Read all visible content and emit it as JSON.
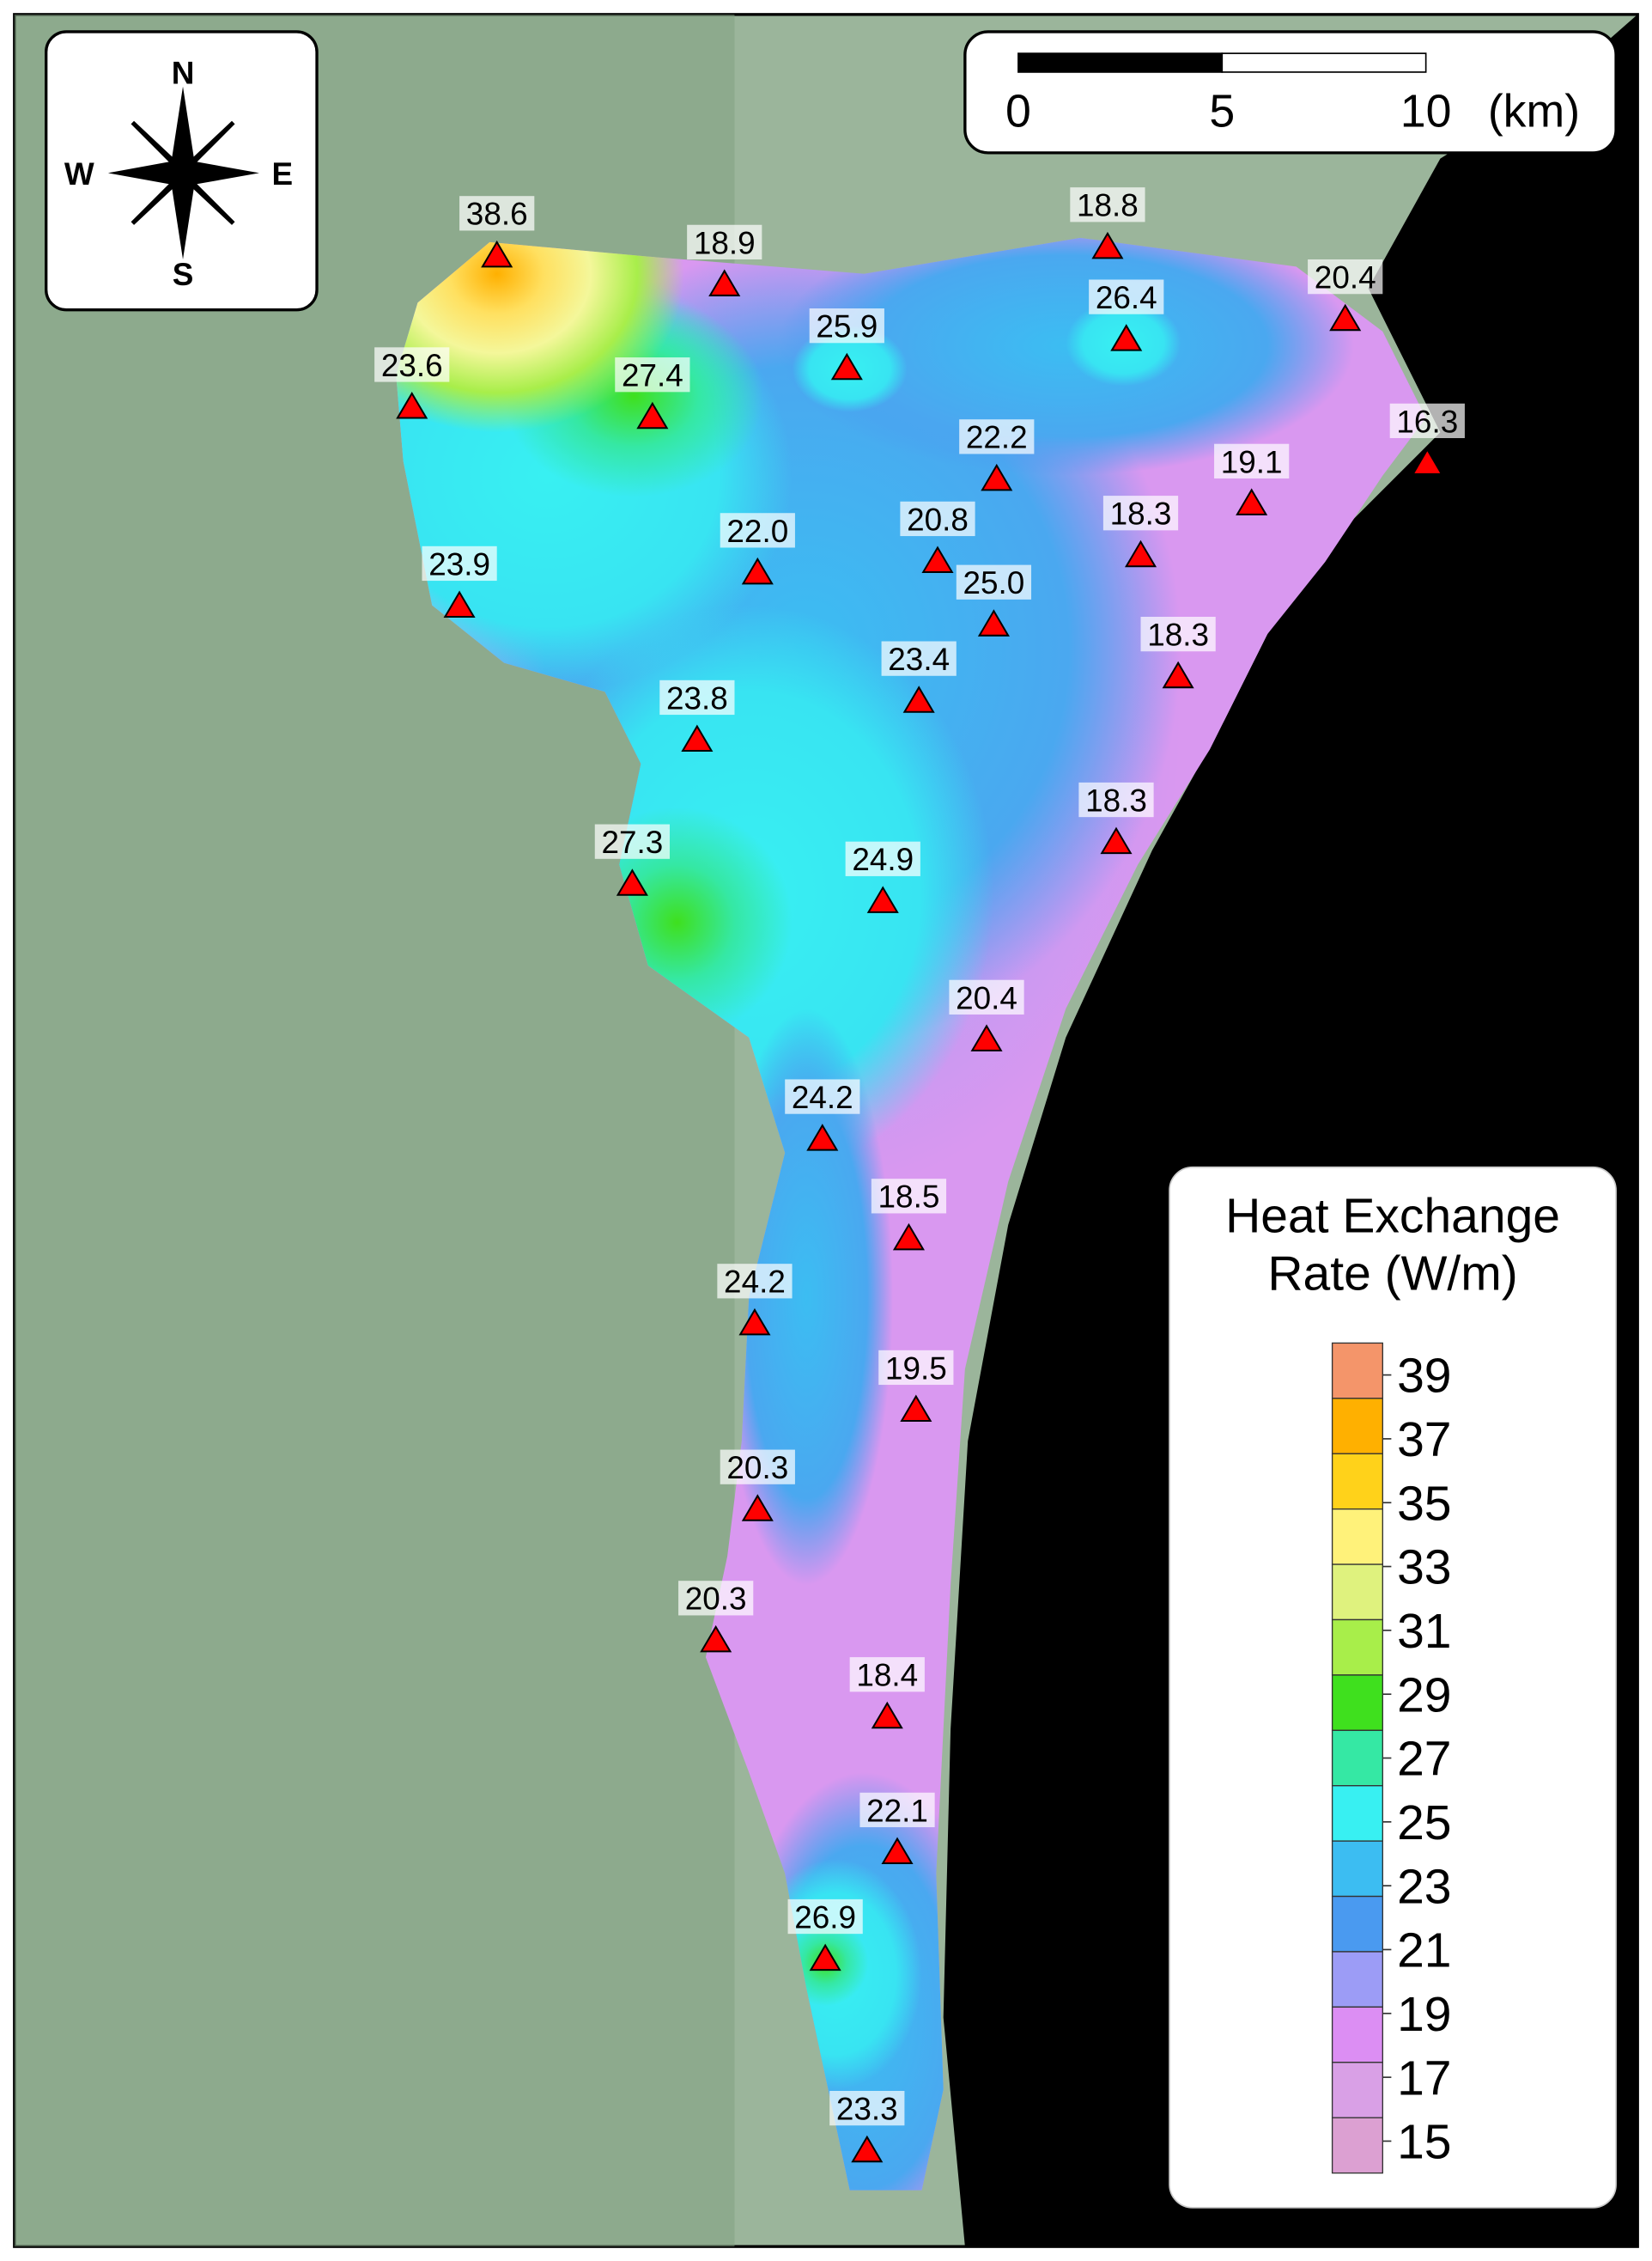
{
  "compass": {
    "north": "N",
    "south": "S",
    "east": "E",
    "west": "W"
  },
  "scale_bar": {
    "ticks": [
      0,
      5,
      10
    ],
    "unit": "(km)"
  },
  "legend": {
    "title_lines": [
      "Heat Exchange",
      "Rate (W/m)"
    ],
    "ticks": [
      39,
      37,
      35,
      33,
      31,
      29,
      27,
      25,
      23,
      21,
      19,
      17,
      15
    ],
    "colors": [
      "#f4956a",
      "#ffb000",
      "#ffd21a",
      "#fff27a",
      "#dff27e",
      "#a8ee4a",
      "#3fe01e",
      "#35e8a4",
      "#38f0f2",
      "#3cbdf2",
      "#4a9af0",
      "#9c9cf6",
      "#dc8ef3",
      "#d9a0e6",
      "#dca0d2"
    ]
  },
  "stations": [
    "38.6",
    "18.9",
    "18.8",
    "20.4",
    "25.9",
    "26.4",
    "23.6",
    "27.4",
    "16.3",
    "22.2",
    "19.1",
    "22.0",
    "20.8",
    "18.3",
    "23.9",
    "25.0",
    "18.3",
    "23.4",
    "23.8",
    "18.3",
    "27.3",
    "24.9",
    "20.4",
    "24.2",
    "18.5",
    "24.2",
    "19.5",
    "20.3",
    "20.3",
    "18.4",
    "22.1",
    "26.9",
    "23.3"
  ]
}
